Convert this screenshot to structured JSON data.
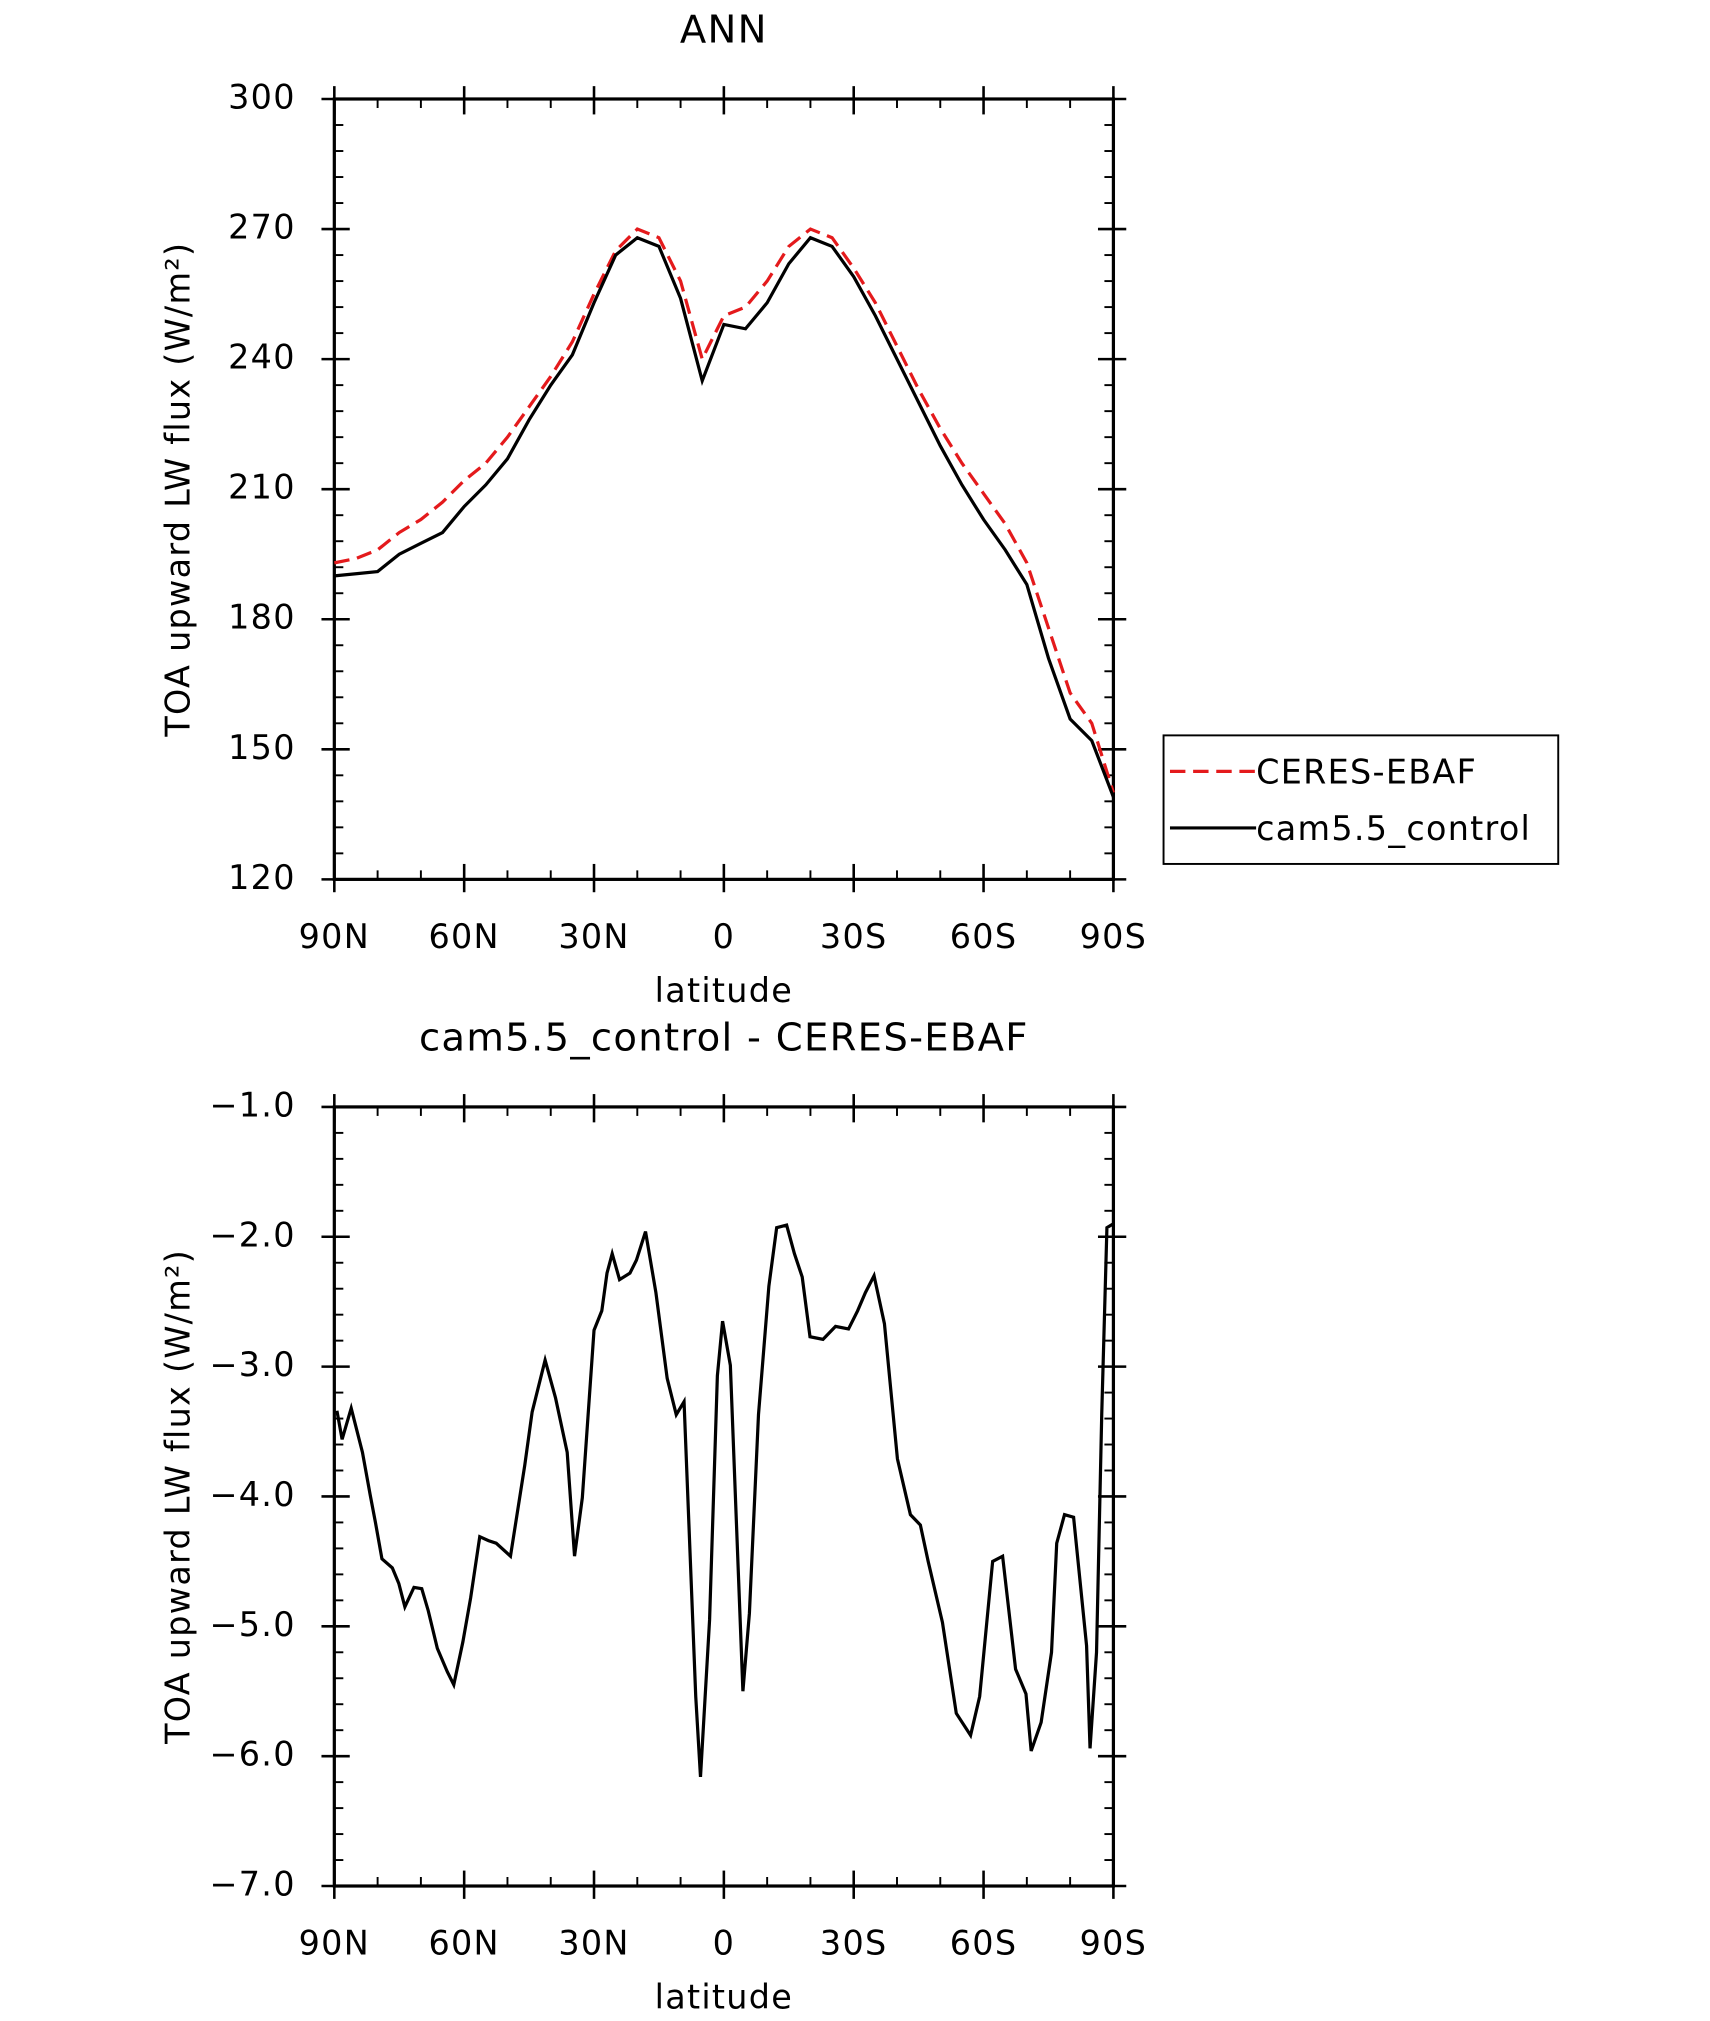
{
  "chart_data": [
    {
      "type": "line",
      "title": "ANN",
      "xlabel": "latitude",
      "ylabel": "TOA upward LW flux (W/m²)",
      "x": [
        90,
        85,
        80,
        75,
        70,
        65,
        60,
        55,
        50,
        45,
        40,
        35,
        30,
        25,
        20,
        15,
        10,
        5,
        0,
        -5,
        -10,
        -15,
        -20,
        -25,
        -30,
        -35,
        -40,
        -45,
        -50,
        -55,
        -60,
        -65,
        -70,
        -75,
        -80,
        -85,
        -90
      ],
      "series": [
        {
          "name": "CERES-EBAF",
          "color": "#e41a1c",
          "dash": true,
          "values": [
            193,
            194,
            196,
            200,
            203,
            207,
            212,
            216,
            222,
            229,
            236,
            244,
            255,
            265,
            270,
            268,
            258,
            240,
            250,
            252,
            258,
            266,
            270,
            268,
            261,
            253,
            243,
            233,
            224,
            216,
            209,
            202,
            193,
            178,
            163,
            156,
            140
          ]
        },
        {
          "name": "cam5.5_control",
          "color": "#000000",
          "dash": false,
          "values": [
            190,
            190.5,
            191,
            195,
            197.5,
            200,
            206,
            211,
            217,
            226,
            234,
            241,
            253,
            264,
            268,
            266,
            254,
            235,
            248,
            247,
            253,
            262,
            268,
            266,
            259,
            250,
            240,
            230,
            220,
            211,
            203,
            196,
            188,
            171,
            157,
            152,
            139
          ]
        }
      ],
      "xlim": [
        90,
        -90
      ],
      "xticks": [
        {
          "value": 90,
          "label": "90N"
        },
        {
          "value": 60,
          "label": "60N"
        },
        {
          "value": 30,
          "label": "30N"
        },
        0,
        {
          "value": -30,
          "label": "30S"
        },
        {
          "value": -60,
          "label": "60S"
        },
        {
          "value": -90,
          "label": "90S"
        }
      ],
      "ylim": [
        120,
        300
      ],
      "yticks": [
        120,
        150,
        180,
        210,
        240,
        270,
        300
      ],
      "legend": "right"
    },
    {
      "type": "line",
      "title": "cam5.5_control - CERES-EBAF",
      "xlabel": "latitude",
      "ylabel": "TOA upward LW flux (W/m²)",
      "x": [
        89.4,
        88.2,
        86.1,
        83.5,
        81.7,
        80.5,
        79.0,
        76.6,
        75.1,
        73.7,
        71.6,
        69.8,
        68.3,
        66.2,
        63.9,
        62.4,
        60.3,
        58.5,
        56.4,
        54.4,
        52.6,
        49.3,
        46.0,
        44.3,
        41.3,
        38.9,
        36.2,
        34.5,
        32.7,
        30.0,
        28.2,
        27.0,
        25.8,
        24.1,
        21.7,
        20.2,
        18.1,
        15.7,
        13.1,
        11.0,
        9.2,
        6.5,
        5.4,
        3.3,
        1.5,
        0.3,
        -1.5,
        -4.4,
        -5.9,
        -8.0,
        -10.4,
        -12.2,
        -14.5,
        -16.3,
        -18.1,
        -19.9,
        -22.9,
        -25.8,
        -28.8,
        -30.9,
        -32.7,
        -34.7,
        -37.1,
        -40.1,
        -43.1,
        -45.4,
        -47.2,
        -50.5,
        -53.7,
        -57.0,
        -59.1,
        -62.1,
        -64.4,
        -67.4,
        -69.8,
        -71.0,
        -73.3,
        -75.7,
        -76.9,
        -78.7,
        -80.8,
        -83.8,
        -84.6,
        -86.1,
        -87.3,
        -88.5,
        -90
      ],
      "series": [
        {
          "name": "cam5.5_control - CERES-EBAF",
          "color": "#000000",
          "dash": false,
          "values": [
            -3.34,
            -3.56,
            -3.32,
            -3.66,
            -3.99,
            -4.2,
            -4.48,
            -4.55,
            -4.67,
            -4.85,
            -4.7,
            -4.71,
            -4.88,
            -5.17,
            -5.35,
            -5.45,
            -5.12,
            -4.78,
            -4.31,
            -4.34,
            -4.36,
            -4.46,
            -3.76,
            -3.35,
            -2.95,
            -3.24,
            -3.66,
            -4.46,
            -4.01,
            -2.72,
            -2.57,
            -2.28,
            -2.13,
            -2.33,
            -2.28,
            -2.18,
            -1.96,
            -2.43,
            -3.09,
            -3.37,
            -3.27,
            -5.54,
            -6.16,
            -4.95,
            -3.07,
            -2.65,
            -2.99,
            -5.5,
            -4.9,
            -3.37,
            -2.38,
            -1.93,
            -1.91,
            -2.13,
            -2.31,
            -2.77,
            -2.79,
            -2.69,
            -2.71,
            -2.57,
            -2.43,
            -2.3,
            -2.67,
            -3.71,
            -4.14,
            -4.22,
            -4.5,
            -4.97,
            -5.67,
            -5.84,
            -5.54,
            -4.5,
            -4.46,
            -5.33,
            -5.52,
            -5.96,
            -5.74,
            -5.2,
            -4.36,
            -4.14,
            -4.16,
            -5.15,
            -5.94,
            -5.2,
            -3.37,
            -1.93,
            -1.9
          ]
        }
      ],
      "xlim": [
        90,
        -90
      ],
      "xticks": [
        {
          "value": 90,
          "label": "90N"
        },
        {
          "value": 60,
          "label": "60N"
        },
        {
          "value": 30,
          "label": "30N"
        },
        0,
        {
          "value": -30,
          "label": "30S"
        },
        {
          "value": -60,
          "label": "60S"
        },
        {
          "value": -90,
          "label": "90S"
        }
      ],
      "ylim": [
        -7,
        -1
      ],
      "yticks": [
        {
          "value": -7,
          "label": "−7.0"
        },
        {
          "value": -6,
          "label": "−6.0"
        },
        {
          "value": -5,
          "label": "−5.0"
        },
        {
          "value": -4,
          "label": "−4.0"
        },
        {
          "value": -3,
          "label": "−3.0"
        },
        {
          "value": -2,
          "label": "−2.0"
        },
        {
          "value": -1,
          "label": "−1.0"
        }
      ]
    }
  ]
}
